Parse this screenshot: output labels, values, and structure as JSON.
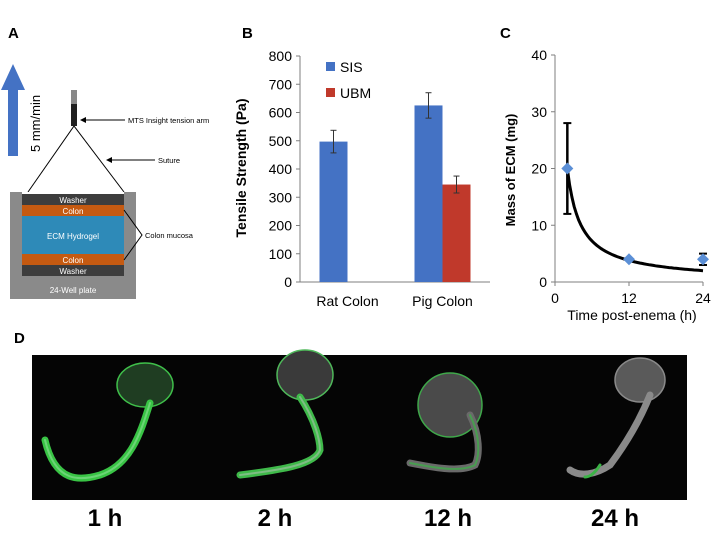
{
  "panels": {
    "a": "A",
    "b": "B",
    "c": "C",
    "d": "D"
  },
  "diagram_a": {
    "speed_label": "5 mm/min",
    "tension_arm_label": "MTS Insight tension arm",
    "suture_label": "Suture",
    "colon_mucosa_label": "Colon mucosa",
    "layers": [
      "Washer",
      "Colon",
      "ECM Hydrogel",
      "Colon",
      "Washer"
    ],
    "plate_label": "24-Well plate",
    "colors": {
      "arrow": "#4472c4",
      "washer": "#3d3d3d",
      "colon": "#c55a11",
      "hydrogel": "#2e8ab8",
      "plate": "#8a8a8a"
    }
  },
  "chart_data": [
    {
      "type": "bar",
      "categories": [
        "Rat Colon",
        "Pig Colon"
      ],
      "series": [
        {
          "name": "SIS",
          "values": [
            497,
            625
          ],
          "errors": [
            40,
            45
          ],
          "color": "#4472c4"
        },
        {
          "name": "UBM",
          "values": [
            null,
            345
          ],
          "errors": [
            null,
            30
          ],
          "color": "#c0392b"
        }
      ],
      "ylabel": "Tensile Strength (Pa)",
      "ylim": [
        0,
        800
      ],
      "yticks": [
        0,
        100,
        200,
        300,
        400,
        500,
        600,
        700,
        800
      ],
      "legend": "top-left",
      "grid": false
    },
    {
      "type": "scatter",
      "points": [
        {
          "x": 2,
          "y": 20,
          "err": 8
        },
        {
          "x": 12,
          "y": 4,
          "err": 0
        },
        {
          "x": 24,
          "y": 4,
          "err": 1
        }
      ],
      "fit_curve": true,
      "marker_color": "#5b8fd6",
      "xlabel": "Time post-enema (h)",
      "ylabel": "Mass of ECM (mg)",
      "xlim": [
        0,
        24
      ],
      "ylim": [
        0,
        40
      ],
      "xticks": [
        0,
        12,
        24
      ],
      "yticks": [
        0,
        10,
        20,
        30,
        40
      ],
      "grid": false
    }
  ],
  "images_d": {
    "labels": [
      "1 h",
      "2 h",
      "12 h",
      "24 h"
    ]
  }
}
